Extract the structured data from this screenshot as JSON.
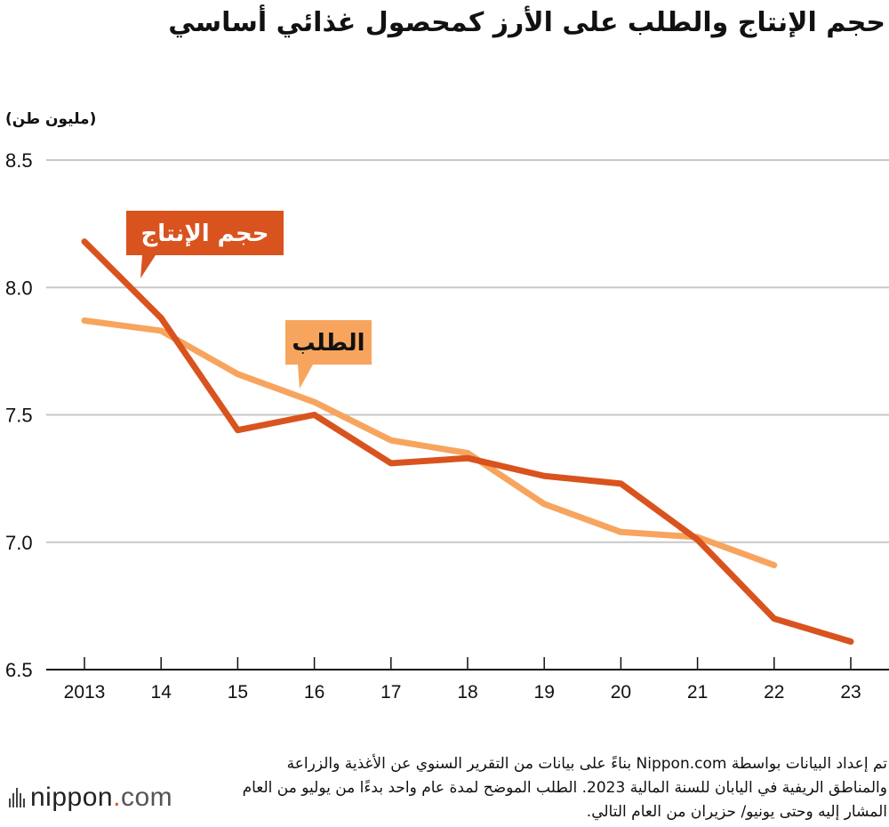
{
  "title": "حجم الإنتاج والطلب على الأرز كمحصول غذائي أساسي",
  "unit_label": "(مليون طن)",
  "source_note": "تم إعداد البيانات بواسطة Nippon.com بناءً على بيانات من التقرير السنوي عن الأغذية والزراعة والمناطق الريفية في اليابان للسنة المالية 2023. الطلب الموضح لمدة عام واحد بدءًا من يوليو من العام المشار إليه وحتى يونيو/ حزيران من العام التالي.",
  "logo": {
    "name": "nippon",
    "dot": ".",
    "suffix": "com"
  },
  "colors": {
    "production": "#d9531e",
    "demand": "#f7a55e",
    "grid": "#c8c8c8",
    "axis": "#111111"
  },
  "chart_data": {
    "type": "line",
    "title": "حجم الإنتاج والطلب على الأرز كمحصول غذائي أساسي",
    "ylabel": "(مليون طن)",
    "xlabel": "",
    "categories": [
      "2013",
      "14",
      "15",
      "16",
      "17",
      "18",
      "19",
      "20",
      "21",
      "22",
      "23"
    ],
    "ylim": [
      6.5,
      8.5
    ],
    "yticks": [
      "8.5",
      "8.0",
      "7.5",
      "7.0",
      "6.5"
    ],
    "grid": true,
    "series": [
      {
        "name": "حجم الإنتاج",
        "key": "production",
        "values": [
          8.18,
          7.88,
          7.44,
          7.5,
          7.31,
          7.33,
          7.26,
          7.23,
          7.01,
          6.7,
          6.61
        ]
      },
      {
        "name": "الطلب",
        "key": "demand",
        "values": [
          7.87,
          7.83,
          7.66,
          7.55,
          7.4,
          7.35,
          7.15,
          7.04,
          7.02,
          6.91,
          null
        ]
      }
    ]
  }
}
